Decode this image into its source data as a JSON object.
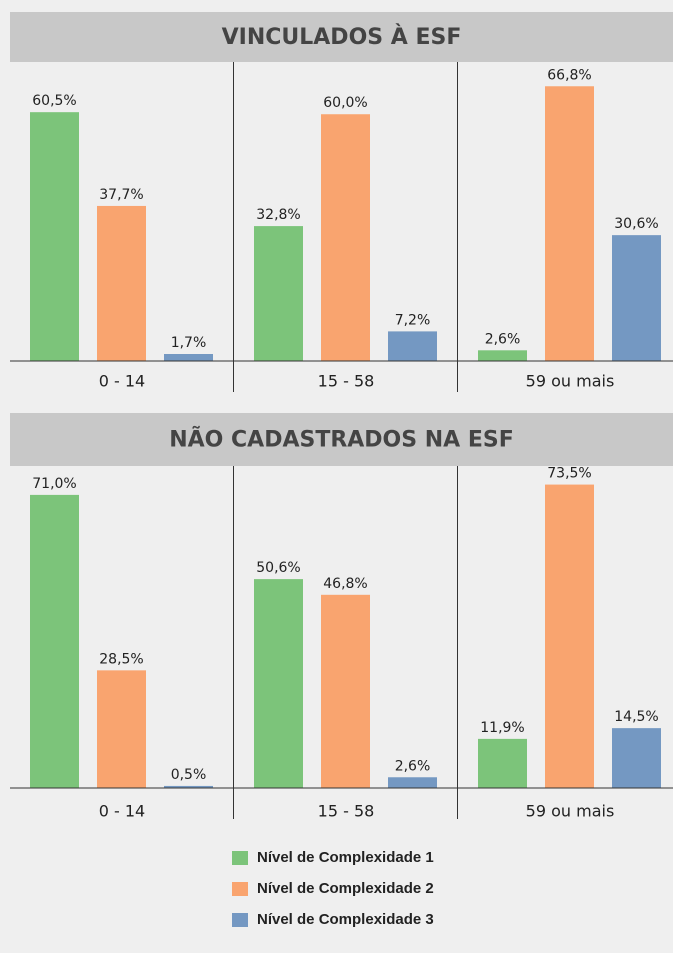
{
  "chart_data": [
    {
      "type": "bar",
      "title": "VINCULADOS À ESF",
      "categories": [
        "0 - 14",
        "15 - 58",
        "59 ou mais"
      ],
      "ylim": [
        0,
        72.7
      ],
      "series": [
        {
          "name": "Nível de Complexidade 1",
          "color": "#7cc47a",
          "values": [
            60.5,
            32.8,
            2.6
          ],
          "value_labels": [
            "60,5%",
            "32,8%",
            "2,6%"
          ]
        },
        {
          "name": "Nível de Complexidade 2",
          "color": "#f9a46f",
          "values": [
            37.7,
            60.0,
            66.8
          ],
          "value_labels": [
            "37,7%",
            "60,0%",
            "66,8%"
          ]
        },
        {
          "name": "Nível de Complexidade 3",
          "color": "#7498c2",
          "values": [
            1.7,
            7.2,
            30.6
          ],
          "value_labels": [
            "1,7%",
            "7,2%",
            "30,6%"
          ]
        }
      ]
    },
    {
      "type": "bar",
      "title": "NÃO CADASTRADOS NA ESF",
      "categories": [
        "0 - 14",
        "15 - 58",
        "59 ou mais"
      ],
      "ylim": [
        0,
        78
      ],
      "series": [
        {
          "name": "Nível de Complexidade 1",
          "color": "#7cc47a",
          "values": [
            71.0,
            50.6,
            11.9
          ],
          "value_labels": [
            "71,0%",
            "50,6%",
            "11,9%"
          ]
        },
        {
          "name": "Nível de Complexidade 2",
          "color": "#f9a46f",
          "values": [
            28.5,
            46.8,
            73.5
          ],
          "value_labels": [
            "28,5%",
            "46,8%",
            "73,5%"
          ]
        },
        {
          "name": "Nível de Complexidade 3",
          "color": "#7498c2",
          "values": [
            0.5,
            2.6,
            14.5
          ],
          "value_labels": [
            "0,5%",
            "2,6%",
            "14,5%"
          ]
        }
      ]
    }
  ]
}
